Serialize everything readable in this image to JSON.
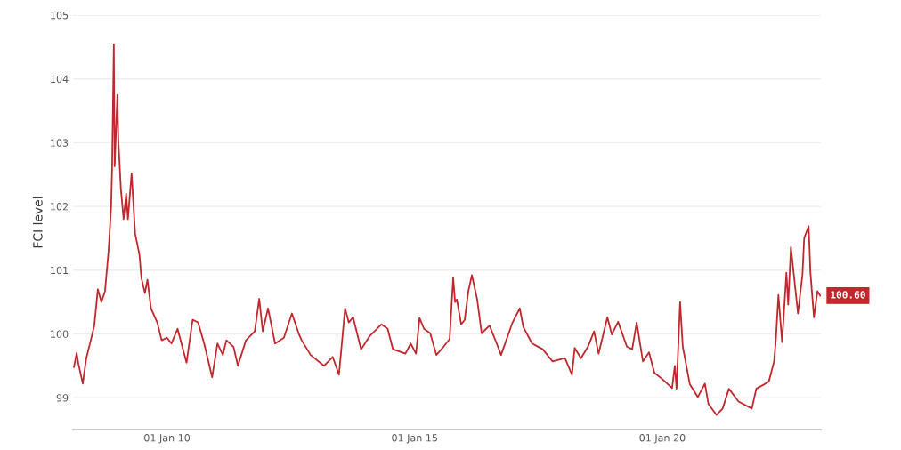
{
  "chart_data": {
    "type": "line",
    "ylabel": "FCI level",
    "x": [
      "2008-02-15",
      "2008-03-06",
      "2008-03-19",
      "2008-04-20",
      "2008-05-16",
      "2008-06-18",
      "2008-07-14",
      "2008-08-09",
      "2008-09-04",
      "2008-10-01",
      "2008-10-27",
      "2008-11-15",
      "2008-11-22",
      "2008-12-05",
      "2008-12-11",
      "2008-12-31",
      "2009-01-07",
      "2009-01-26",
      "2009-02-15",
      "2009-03-06",
      "2009-03-19",
      "2009-04-15",
      "2009-05-11",
      "2009-06-12",
      "2009-06-26",
      "2009-07-22",
      "2009-08-10",
      "2009-09-05",
      "2009-10-21",
      "2009-11-23",
      "2010-01-01",
      "2010-02-03",
      "2010-03-20",
      "2010-05-25",
      "2010-07-09",
      "2010-08-18",
      "2010-10-02",
      "2010-11-30",
      "2011-01-08",
      "2011-02-17",
      "2011-03-15",
      "2011-05-06",
      "2011-06-08",
      "2011-08-06",
      "2011-10-10",
      "2011-11-12",
      "2011-12-08",
      "2012-01-16",
      "2012-03-08",
      "2012-05-12",
      "2012-07-10",
      "2012-09-01",
      "2012-09-20",
      "2012-11-25",
      "2013-03-03",
      "2013-05-07",
      "2013-06-22",
      "2013-08-06",
      "2013-09-02",
      "2013-10-04",
      "2013-12-02",
      "2014-02-05",
      "2014-03-30",
      "2014-05-01",
      "2014-06-16",
      "2014-07-25",
      "2014-10-25",
      "2014-12-03",
      "2015-01-11",
      "2015-02-06",
      "2015-03-11",
      "2015-04-26",
      "2015-06-10",
      "2015-08-02",
      "2015-09-16",
      "2015-10-12",
      "2015-10-26",
      "2015-11-08",
      "2015-12-10",
      "2016-01-05",
      "2016-02-01",
      "2016-02-27",
      "2016-04-06",
      "2016-05-09",
      "2016-07-06",
      "2016-08-28",
      "2016-09-29",
      "2016-12-23",
      "2017-02-14",
      "2017-03-12",
      "2017-05-16",
      "2017-08-02",
      "2017-10-13",
      "2018-01-13",
      "2018-03-06",
      "2018-03-26",
      "2018-05-11",
      "2018-07-02",
      "2018-08-16",
      "2018-09-18",
      "2018-11-22",
      "2018-12-25",
      "2019-02-09",
      "2019-04-15",
      "2019-05-24",
      "2019-06-26",
      "2019-08-11",
      "2019-09-25",
      "2019-11-04",
      "2020-01-02",
      "2020-03-13",
      "2020-04-02",
      "2020-04-15",
      "2020-05-11",
      "2020-05-31",
      "2020-07-22",
      "2020-09-19",
      "2020-11-10",
      "2020-12-06",
      "2021-02-03",
      "2021-03-21",
      "2021-05-06",
      "2021-07-16",
      "2021-10-22",
      "2021-11-24",
      "2022-02-24",
      "2022-04-04",
      "2022-04-17",
      "2022-05-06",
      "2022-06-02",
      "2022-07-04",
      "2022-07-17",
      "2022-08-06",
      "2022-09-27",
      "2022-10-30",
      "2022-11-12",
      "2022-12-15",
      "2022-12-28",
      "2023-01-23",
      "2023-02-18",
      "2023-03-10"
    ],
    "series": [
      {
        "color": "#c0282d",
        "values": [
          99.48,
          99.7,
          99.53,
          99.22,
          99.62,
          99.9,
          100.13,
          100.7,
          100.5,
          100.67,
          101.3,
          101.99,
          102.6,
          104.54,
          102.63,
          103.75,
          103.05,
          102.27,
          101.8,
          102.2,
          101.8,
          102.52,
          101.57,
          101.24,
          100.88,
          100.64,
          100.85,
          100.4,
          100.18,
          99.9,
          99.94,
          99.85,
          100.08,
          99.55,
          100.22,
          100.18,
          99.85,
          99.32,
          99.85,
          99.67,
          99.9,
          99.8,
          99.5,
          99.9,
          100.04,
          100.55,
          100.04,
          100.4,
          99.85,
          99.94,
          100.32,
          99.99,
          99.9,
          99.67,
          99.5,
          99.64,
          99.36,
          100.4,
          100.18,
          100.26,
          99.76,
          99.97,
          100.08,
          100.15,
          100.08,
          99.76,
          99.69,
          99.85,
          99.69,
          100.25,
          100.08,
          100.01,
          99.67,
          99.8,
          99.92,
          100.88,
          100.5,
          100.54,
          100.15,
          100.22,
          100.67,
          100.92,
          100.54,
          100.01,
          100.13,
          99.85,
          99.67,
          100.18,
          100.4,
          100.11,
          99.85,
          99.76,
          99.57,
          99.62,
          99.36,
          99.78,
          99.62,
          99.8,
          100.04,
          99.69,
          100.26,
          99.99,
          100.19,
          99.8,
          99.76,
          100.18,
          99.57,
          99.71,
          99.39,
          99.29,
          99.15,
          99.5,
          99.14,
          100.5,
          99.8,
          99.21,
          99.01,
          99.22,
          98.9,
          98.73,
          98.83,
          99.14,
          98.94,
          98.83,
          99.14,
          99.25,
          99.57,
          99.9,
          100.61,
          99.87,
          100.96,
          100.46,
          101.36,
          100.32,
          100.92,
          101.5,
          101.69,
          100.96,
          100.26,
          100.67,
          100.6
        ]
      }
    ],
    "xlim": [
      "2008-02-08",
      "2023-03-15"
    ],
    "xticks": [
      {
        "value": "2010-01-01",
        "label": "01 Jan 10"
      },
      {
        "value": "2015-01-01",
        "label": "01 Jan 15"
      },
      {
        "value": "2020-01-01",
        "label": "01 Jan 20"
      }
    ],
    "ylim": [
      98.5,
      105
    ],
    "yticks": [
      99,
      100,
      101,
      102,
      103,
      104,
      105
    ],
    "grid": "y",
    "annotations": [
      {
        "text": "100.60",
        "x": "2023-03-10",
        "y": 100.6
      }
    ]
  }
}
